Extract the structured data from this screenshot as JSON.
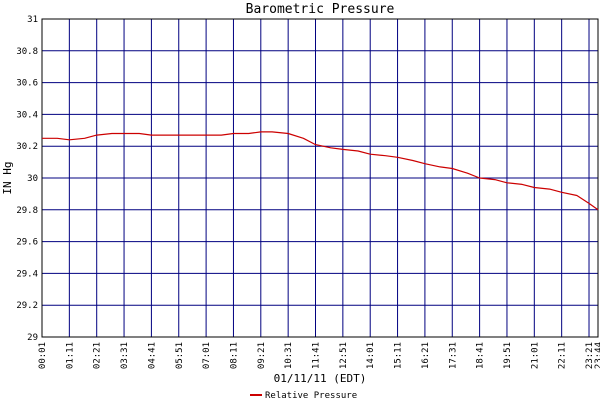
{
  "chart_data": {
    "type": "line",
    "title": "Barometric Pressure",
    "xlabel": "01/11/11 (EDT)",
    "ylabel": "IN Hg",
    "ylim": [
      29,
      31
    ],
    "yticks": [
      "29",
      "29.2",
      "29.4",
      "29.6",
      "29.8",
      "30",
      "30.2",
      "30.4",
      "30.6",
      "30.8",
      "31"
    ],
    "xticks": [
      "00:01",
      "01:11",
      "02:21",
      "03:31",
      "04:41",
      "05:51",
      "07:01",
      "08:11",
      "09:21",
      "10:31",
      "11:41",
      "12:51",
      "14:01",
      "15:11",
      "16:21",
      "17:31",
      "18:41",
      "19:51",
      "21:01",
      "22:11",
      "23:21",
      "23:44"
    ],
    "grid": true,
    "legend": "bottom",
    "colors": {
      "series": "#cc0000",
      "grid": "#000080",
      "frame": "#000000"
    },
    "series": [
      {
        "name": "Relative Pressure",
        "x": [
          "00:01",
          "00:40",
          "01:11",
          "01:50",
          "02:21",
          "03:00",
          "03:31",
          "04:10",
          "04:41",
          "05:20",
          "05:51",
          "06:30",
          "07:01",
          "07:40",
          "08:11",
          "08:50",
          "09:21",
          "09:50",
          "10:31",
          "11:10",
          "11:41",
          "12:20",
          "12:51",
          "13:30",
          "14:01",
          "14:40",
          "15:11",
          "15:50",
          "16:21",
          "17:00",
          "17:31",
          "18:10",
          "18:41",
          "19:20",
          "19:51",
          "20:30",
          "21:01",
          "21:40",
          "22:11",
          "22:50",
          "23:21",
          "23:44"
        ],
        "values": [
          30.25,
          30.25,
          30.24,
          30.25,
          30.27,
          30.28,
          30.28,
          30.28,
          30.27,
          30.27,
          30.27,
          30.27,
          30.27,
          30.27,
          30.28,
          30.28,
          30.29,
          30.29,
          30.28,
          30.25,
          30.21,
          30.19,
          30.18,
          30.17,
          30.15,
          30.14,
          30.13,
          30.11,
          30.09,
          30.07,
          30.06,
          30.03,
          30.0,
          29.99,
          29.97,
          29.96,
          29.94,
          29.93,
          29.91,
          29.89,
          29.84,
          29.8
        ]
      }
    ]
  }
}
